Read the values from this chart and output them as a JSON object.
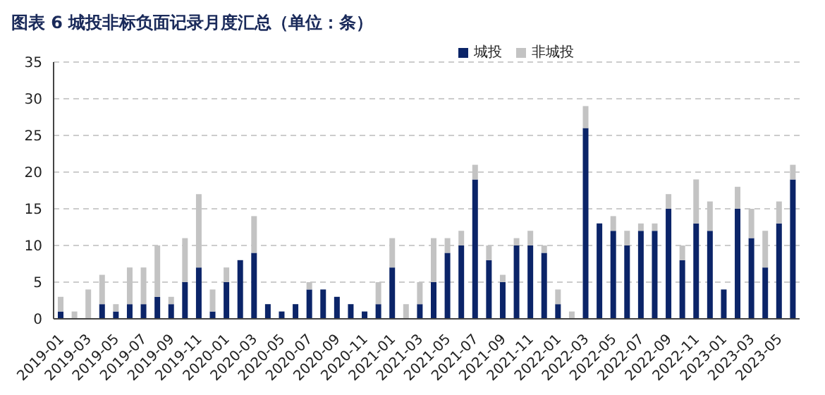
{
  "chart_data": {
    "type": "bar",
    "title": "图表 6 城投非标负面记录月度汇总（单位：条）",
    "categories": [
      "2019-01",
      null,
      "2019-03",
      null,
      "2019-05",
      null,
      "2019-07",
      null,
      "2019-09",
      null,
      "2019-11",
      null,
      "2020-01",
      null,
      "2020-03",
      null,
      "2020-05",
      null,
      "2020-07",
      null,
      "2020-09",
      null,
      "2020-11",
      null,
      "2021-01",
      null,
      "2021-03",
      null,
      "2021-05",
      null,
      "2021-07",
      null,
      "2021-09",
      null,
      "2021-11",
      null,
      "2022-01",
      null,
      "2022-03",
      null,
      "2022-05",
      null,
      "2022-07",
      null,
      "2022-09",
      null,
      "2022-11",
      null,
      "2023-01",
      null,
      "2023-03",
      null,
      "2023-05",
      null
    ],
    "series": [
      {
        "name": "城投",
        "color": "#0b2468",
        "values": [
          1,
          0,
          0,
          2,
          1,
          2,
          2,
          3,
          2,
          5,
          7,
          1,
          5,
          8,
          9,
          2,
          1,
          2,
          4,
          4,
          3,
          2,
          1,
          2,
          7,
          0,
          2,
          5,
          9,
          10,
          19,
          8,
          5,
          10,
          10,
          9,
          2,
          0,
          26,
          13,
          12,
          10,
          12,
          12,
          15,
          8,
          13,
          12,
          4,
          15,
          11,
          7,
          13,
          19
        ]
      },
      {
        "name": "非城投",
        "color": "#c3c3c3",
        "values": [
          2,
          1,
          4,
          4,
          1,
          5,
          5,
          7,
          1,
          6,
          10,
          3,
          2,
          0,
          5,
          0,
          0,
          0,
          1,
          0,
          0,
          0,
          0,
          3,
          4,
          2,
          3,
          6,
          2,
          2,
          2,
          2,
          1,
          1,
          2,
          1,
          2,
          1,
          3,
          0,
          2,
          2,
          1,
          1,
          2,
          2,
          6,
          4,
          0,
          3,
          4,
          5,
          3,
          2
        ]
      }
    ],
    "stacked": true,
    "ylim": [
      0,
      35
    ],
    "yticks": [
      0,
      5,
      10,
      15,
      20,
      25,
      30,
      35
    ],
    "grid": "y",
    "legend": "top right"
  }
}
